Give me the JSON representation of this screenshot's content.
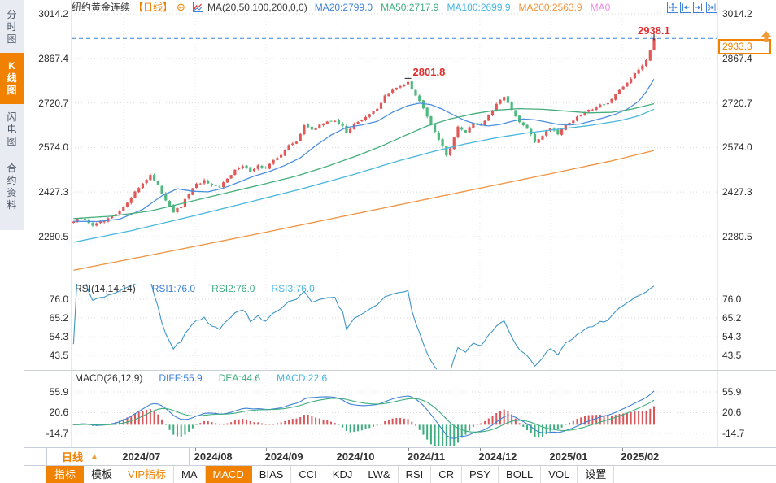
{
  "app": {
    "title": "纽约黄金连续"
  },
  "sidebar": {
    "tabs": [
      {
        "key": "time-chart",
        "label": "分时图",
        "active": false
      },
      {
        "key": "kline-chart",
        "label": "K线图",
        "active": true
      },
      {
        "key": "flash-chart",
        "label": "闪电图",
        "active": false
      },
      {
        "key": "contract-info",
        "label": "合约资料",
        "active": false
      }
    ]
  },
  "header": {
    "symbol": "纽约黄金连续",
    "period_tag": "【日线】",
    "add_icon_glyph": "⊕",
    "ma_label": "MA(20,50,100,200,0,0)",
    "ma_values": [
      {
        "key": "ma20",
        "text": "MA20:2799.0",
        "color": "#3e82d8"
      },
      {
        "key": "ma50",
        "text": "MA50:2717.9",
        "color": "#3fae7e"
      },
      {
        "key": "ma100",
        "text": "MA100:2699.9",
        "color": "#45b5e0"
      },
      {
        "key": "ma200",
        "text": "MA200:2563.9",
        "color": "#f0953e"
      },
      {
        "key": "ma0",
        "text": "MA0",
        "color": "#ee8ce2"
      }
    ]
  },
  "icons": {
    "header_add": "circle-plus-icon",
    "header_chart": "kline-style-icon",
    "corner": [
      "crosshair-icon",
      "pan-left-icon",
      "pan-right-icon",
      "jump-latest-icon"
    ],
    "macd_panel": "sun-settings-icon",
    "price_arrow": "up-arrow-icon",
    "period_arrow": "triangle-up-icon"
  },
  "rsi_header": {
    "label": "RSI(14,14,14)",
    "values": [
      {
        "key": "rsi1",
        "text": "RSI1:76.0",
        "color": "#3e82d8"
      },
      {
        "key": "rsi2",
        "text": "RSI2:76.0",
        "color": "#3fae7e"
      },
      {
        "key": "rsi3",
        "text": "RSI3:76.0",
        "color": "#45b5e0"
      }
    ]
  },
  "macd_header": {
    "label": "MACD(26,12,9)",
    "values": [
      {
        "key": "diff",
        "text": "DIFF:55.9",
        "color": "#3e82d8"
      },
      {
        "key": "dea",
        "text": "DEA:44.6",
        "color": "#3fae7e"
      },
      {
        "key": "macd",
        "text": "MACD:22.6",
        "color": "#45b5e0"
      }
    ]
  },
  "period_selector": {
    "label": "日线",
    "arrow": "▲"
  },
  "bottom_toolbar": [
    {
      "key": "indicators",
      "label": "指标",
      "state": "active"
    },
    {
      "key": "templates",
      "label": "模板",
      "state": "normal"
    },
    {
      "key": "vip-indicators",
      "label": "VIP指标",
      "state": "vip"
    },
    {
      "key": "ma",
      "label": "MA",
      "state": "normal"
    },
    {
      "key": "macd",
      "label": "MACD",
      "state": "active"
    },
    {
      "key": "bias",
      "label": "BIAS",
      "state": "normal"
    },
    {
      "key": "cci",
      "label": "CCI",
      "state": "normal"
    },
    {
      "key": "kdj",
      "label": "KDJ",
      "state": "normal"
    },
    {
      "key": "lw",
      "label": "LW&",
      "state": "normal"
    },
    {
      "key": "rsi",
      "label": "RSI",
      "state": "normal"
    },
    {
      "key": "cr",
      "label": "CR",
      "state": "normal"
    },
    {
      "key": "psy",
      "label": "PSY",
      "state": "normal"
    },
    {
      "key": "boll",
      "label": "BOLL",
      "state": "normal"
    },
    {
      "key": "vol",
      "label": "VOL",
      "state": "normal"
    },
    {
      "key": "settings",
      "label": "设置",
      "state": "normal"
    }
  ],
  "chart_data": {
    "type": "candlestick",
    "symbol": "纽约黄金连续",
    "period": "日线",
    "current_price": "2933.3",
    "num_candles": 152,
    "x_axis": {
      "labels": [
        "2024/07",
        "2024/08",
        "2024/09",
        "2024/10",
        "2024/11",
        "2024/12",
        "2025/01",
        "2025/02"
      ],
      "label_days": [
        13.5,
        32.2,
        50.6,
        69.2,
        87.6,
        106.2,
        124.6,
        143.2
      ]
    },
    "price_panel": {
      "y_ticks": [
        "3014.2",
        "2867.4",
        "2720.7",
        "2574.0",
        "2427.3",
        "2280.5"
      ],
      "close_anchors": [
        [
          0,
          2330
        ],
        [
          2,
          2342
        ],
        [
          5,
          2318
        ],
        [
          8,
          2331
        ],
        [
          11,
          2352
        ],
        [
          13,
          2376
        ],
        [
          15,
          2412
        ],
        [
          17,
          2442
        ],
        [
          19,
          2470
        ],
        [
          20,
          2484
        ],
        [
          22,
          2446
        ],
        [
          24,
          2402
        ],
        [
          26,
          2362
        ],
        [
          28,
          2380
        ],
        [
          30,
          2422
        ],
        [
          32,
          2452
        ],
        [
          34,
          2464
        ],
        [
          36,
          2446
        ],
        [
          38,
          2442
        ],
        [
          40,
          2474
        ],
        [
          42,
          2500
        ],
        [
          44,
          2512
        ],
        [
          46,
          2498
        ],
        [
          48,
          2514
        ],
        [
          50,
          2506
        ],
        [
          52,
          2530
        ],
        [
          54,
          2552
        ],
        [
          56,
          2580
        ],
        [
          58,
          2592
        ],
        [
          60,
          2650
        ],
        [
          62,
          2630
        ],
        [
          64,
          2650
        ],
        [
          66,
          2657
        ],
        [
          68,
          2664
        ],
        [
          70,
          2642
        ],
        [
          71,
          2620
        ],
        [
          73,
          2654
        ],
        [
          75,
          2664
        ],
        [
          77,
          2682
        ],
        [
          79,
          2702
        ],
        [
          81,
          2744
        ],
        [
          83,
          2762
        ],
        [
          85,
          2777
        ],
        [
          87,
          2790
        ],
        [
          89,
          2746
        ],
        [
          91,
          2706
        ],
        [
          93,
          2652
        ],
        [
          95,
          2602
        ],
        [
          97,
          2548
        ],
        [
          98,
          2574
        ],
        [
          100,
          2640
        ],
        [
          102,
          2626
        ],
        [
          104,
          2656
        ],
        [
          106,
          2646
        ],
        [
          108,
          2680
        ],
        [
          110,
          2714
        ],
        [
          112,
          2744
        ],
        [
          114,
          2696
        ],
        [
          116,
          2656
        ],
        [
          118,
          2636
        ],
        [
          120,
          2592
        ],
        [
          122,
          2614
        ],
        [
          124,
          2640
        ],
        [
          126,
          2620
        ],
        [
          128,
          2650
        ],
        [
          130,
          2664
        ],
        [
          133,
          2690
        ],
        [
          135,
          2702
        ],
        [
          137,
          2714
        ],
        [
          139,
          2720
        ],
        [
          141,
          2746
        ],
        [
          143,
          2774
        ],
        [
          145,
          2802
        ],
        [
          147,
          2830
        ],
        [
          149,
          2862
        ],
        [
          150,
          2896
        ],
        [
          151,
          2933.3
        ]
      ],
      "pinned": {
        "peak_day": 87,
        "peak_close": 2790,
        "peak_high": 2801.8,
        "last_open": 2896,
        "last_close": 2933.3,
        "last_high": 2938.1
      },
      "ma_lines": [
        {
          "name": "MA20",
          "value_shown": 2799.0,
          "color": "#4b8fe0",
          "anchors": [
            [
              0,
              2331
            ],
            [
              6,
              2330
            ],
            [
              12,
              2338
            ],
            [
              18,
              2370
            ],
            [
              23,
              2415
            ],
            [
              27,
              2438
            ],
            [
              31,
              2430
            ],
            [
              35,
              2428
            ],
            [
              39,
              2440
            ],
            [
              43,
              2460
            ],
            [
              47,
              2480
            ],
            [
              51,
              2495
            ],
            [
              55,
              2515
            ],
            [
              59,
              2540
            ],
            [
              63,
              2580
            ],
            [
              67,
              2615
            ],
            [
              71,
              2640
            ],
            [
              75,
              2648
            ],
            [
              79,
              2660
            ],
            [
              83,
              2690
            ],
            [
              87,
              2712
            ],
            [
              90,
              2720
            ],
            [
              93,
              2715
            ],
            [
              96,
              2700
            ],
            [
              99,
              2680
            ],
            [
              102,
              2662
            ],
            [
              105,
              2650
            ],
            [
              108,
              2645
            ],
            [
              111,
              2650
            ],
            [
              114,
              2660
            ],
            [
              117,
              2668
            ],
            [
              120,
              2665
            ],
            [
              123,
              2658
            ],
            [
              126,
              2650
            ],
            [
              129,
              2648
            ],
            [
              132,
              2652
            ],
            [
              135,
              2662
            ],
            [
              138,
              2672
            ],
            [
              141,
              2684
            ],
            [
              144,
              2700
            ],
            [
              147,
              2726
            ],
            [
              149,
              2758
            ],
            [
              151,
              2799
            ]
          ]
        },
        {
          "name": "MA50",
          "value_shown": 2717.9,
          "color": "#44ae7c",
          "anchors": [
            [
              0,
              2340
            ],
            [
              10,
              2348
            ],
            [
              20,
              2365
            ],
            [
              30,
              2395
            ],
            [
              40,
              2425
            ],
            [
              50,
              2455
            ],
            [
              58,
              2480
            ],
            [
              66,
              2512
            ],
            [
              74,
              2548
            ],
            [
              80,
              2578
            ],
            [
              86,
              2612
            ],
            [
              92,
              2645
            ],
            [
              98,
              2668
            ],
            [
              104,
              2685
            ],
            [
              110,
              2697
            ],
            [
              116,
              2702
            ],
            [
              122,
              2700
            ],
            [
              128,
              2694
            ],
            [
              134,
              2688
            ],
            [
              140,
              2690
            ],
            [
              145,
              2700
            ],
            [
              151,
              2718
            ]
          ]
        },
        {
          "name": "MA100",
          "value_shown": 2699.9,
          "color": "#49b6dd",
          "anchors": [
            [
              0,
              2262
            ],
            [
              15,
              2300
            ],
            [
              30,
              2345
            ],
            [
              45,
              2392
            ],
            [
              60,
              2440
            ],
            [
              72,
              2482
            ],
            [
              84,
              2528
            ],
            [
              94,
              2562
            ],
            [
              102,
              2586
            ],
            [
              110,
              2606
            ],
            [
              118,
              2622
            ],
            [
              126,
              2634
            ],
            [
              134,
              2646
            ],
            [
              142,
              2662
            ],
            [
              147,
              2678
            ],
            [
              151,
              2700
            ]
          ]
        },
        {
          "name": "MA200",
          "value_shown": 2563.9,
          "color": "#ef9341",
          "anchors": [
            [
              0,
              2170
            ],
            [
              25,
              2232
            ],
            [
              50,
              2295
            ],
            [
              75,
              2360
            ],
            [
              100,
              2425
            ],
            [
              125,
              2490
            ],
            [
              140,
              2530
            ],
            [
              151,
              2564
            ]
          ]
        }
      ]
    },
    "rsi_panel": {
      "y_ticks": [
        "76.0",
        "65.2",
        "54.3",
        "43.5"
      ],
      "period": 14,
      "line_color": "#3f96c9",
      "values_shown": {
        "RSI1": 76.0,
        "RSI2": 76.0,
        "RSI3": 76.0
      }
    },
    "macd_panel": {
      "y_ticks": [
        "55.9",
        "20.6",
        "-14.7"
      ],
      "fast": 12,
      "slow": 26,
      "signal": 9,
      "diff_color": "#3e82d8",
      "dea_color": "#3fae7e",
      "hist_up": "#d9565a",
      "hist_down": "#3fae7e",
      "values_shown": {
        "DIFF": 55.9,
        "DEA": 44.6,
        "MACD": 22.6
      }
    },
    "annotations": [
      {
        "label": "2801.8",
        "day": 87,
        "value": 2801.8
      },
      {
        "label": "2938.1",
        "day": 151,
        "value": 2938.1
      }
    ],
    "colors": {
      "up": "#e05858",
      "down": "#4fb97f",
      "dashed_price_line": "#3e82d8",
      "accent_orange": "#f18101"
    }
  }
}
